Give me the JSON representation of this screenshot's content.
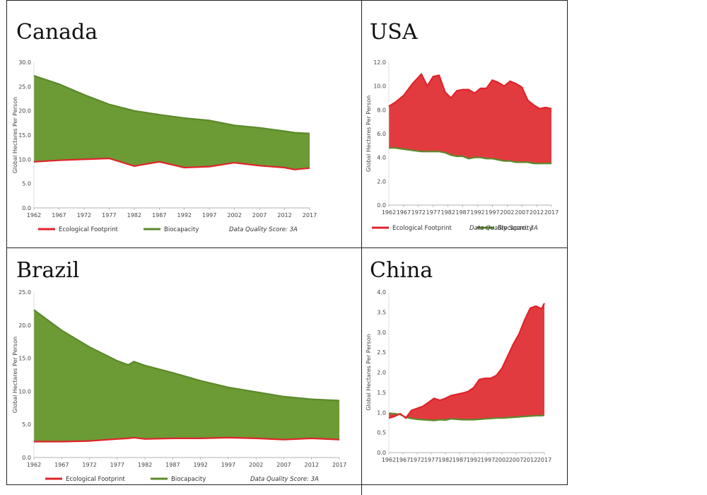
{
  "colors": {
    "footprint": "#e0232a",
    "biocapacity": "#5b8a2b",
    "footprint_fill": "#e23b3f",
    "biocapacity_fill": "#6c9a34"
  },
  "chart_data": [
    {
      "id": "canada",
      "type": "area",
      "title": "Canada",
      "ylabel": "Global Hectares Per Person",
      "ylim": [
        0,
        30
      ],
      "yticks": [
        "0.0",
        "5.0",
        "10.0",
        "15.0",
        "20.0",
        "25.0",
        "30.0"
      ],
      "ytick_values": [
        0,
        5,
        10,
        15,
        20,
        25,
        30
      ],
      "xticks": [
        "1962",
        "1967",
        "1972",
        "1977",
        "1982",
        "1987",
        "1992",
        "1997",
        "2002",
        "2007",
        "2012",
        "2017"
      ],
      "x": [
        1962,
        1967,
        1972,
        1977,
        1982,
        1987,
        1992,
        1997,
        2002,
        2007,
        2012,
        2014,
        2017
      ],
      "series": [
        {
          "name": "Ecological Footprint",
          "key": "footprint",
          "values": [
            9.5,
            9.8,
            10.0,
            10.2,
            8.6,
            9.5,
            8.3,
            8.5,
            9.3,
            8.7,
            8.3,
            7.9,
            8.2
          ]
        },
        {
          "name": "Biocapacity",
          "key": "biocapacity",
          "values": [
            27.2,
            25.5,
            23.3,
            21.3,
            20.0,
            19.2,
            18.5,
            18.0,
            17.0,
            16.5,
            15.8,
            15.5,
            15.3
          ]
        }
      ],
      "legend": {
        "items": [
          "Ecological Footprint",
          "Biocapacity"
        ],
        "note": "Data Quality Score: 3A"
      }
    },
    {
      "id": "usa",
      "type": "area",
      "title": "USA",
      "ylabel": "Global Hectares Per Person",
      "ylim": [
        0,
        12
      ],
      "yticks": [
        "0.0",
        "2.0",
        "4.0",
        "6.0",
        "8.0",
        "10.0",
        "12.0"
      ],
      "ytick_values": [
        0,
        2,
        4,
        6,
        8,
        10,
        12
      ],
      "xticks": [
        "1962",
        "1967",
        "1972",
        "1977",
        "1982",
        "1987",
        "1992",
        "1997",
        "2002",
        "2007",
        "2012",
        "2017"
      ],
      "x": [
        1962,
        1964,
        1967,
        1970,
        1973,
        1975,
        1977,
        1979,
        1981,
        1983,
        1985,
        1987,
        1989,
        1991,
        1993,
        1995,
        1997,
        1999,
        2001,
        2003,
        2005,
        2007,
        2009,
        2011,
        2013,
        2015,
        2017
      ],
      "series": [
        {
          "name": "Ecological Footprint",
          "key": "footprint",
          "values": [
            8.3,
            8.6,
            9.2,
            10.2,
            11.0,
            10.0,
            10.8,
            10.9,
            9.5,
            9.0,
            9.6,
            9.7,
            9.7,
            9.4,
            9.8,
            9.8,
            10.5,
            10.3,
            10.0,
            10.4,
            10.2,
            9.9,
            8.8,
            8.4,
            8.1,
            8.2,
            8.1
          ]
        },
        {
          "name": "Biocapacity",
          "key": "biocapacity",
          "values": [
            4.8,
            4.8,
            4.7,
            4.6,
            4.5,
            4.5,
            4.5,
            4.5,
            4.4,
            4.2,
            4.1,
            4.1,
            3.9,
            4.0,
            4.0,
            3.9,
            3.9,
            3.8,
            3.7,
            3.7,
            3.6,
            3.6,
            3.6,
            3.5,
            3.5,
            3.5,
            3.5
          ]
        }
      ],
      "legend": {
        "items": [
          "Ecological Footprint",
          "Biocapacity"
        ],
        "note": "Data Quality Score: 3A"
      }
    },
    {
      "id": "brazil",
      "type": "area",
      "title": "Brazil",
      "ylabel": "Global Hectares Per Person",
      "ylim": [
        0,
        25
      ],
      "yticks": [
        "0.0",
        "5.0",
        "10.0",
        "15.0",
        "20.0",
        "25.0"
      ],
      "ytick_values": [
        0,
        5,
        10,
        15,
        20,
        25
      ],
      "xticks": [
        "1962",
        "1967",
        "1972",
        "1977",
        "1982",
        "1987",
        "1992",
        "1997",
        "2002",
        "2007",
        "2012",
        "2017"
      ],
      "x": [
        1962,
        1967,
        1972,
        1977,
        1979,
        1980,
        1982,
        1987,
        1992,
        1997,
        2002,
        2007,
        2012,
        2017
      ],
      "series": [
        {
          "name": "Ecological Footprint",
          "key": "footprint",
          "values": [
            2.4,
            2.4,
            2.5,
            2.8,
            2.9,
            3.0,
            2.8,
            2.9,
            2.9,
            3.0,
            2.9,
            2.7,
            2.9,
            2.7
          ]
        },
        {
          "name": "Biocapacity",
          "key": "biocapacity",
          "values": [
            22.3,
            19.2,
            16.7,
            14.6,
            14.0,
            14.5,
            13.9,
            12.8,
            11.6,
            10.6,
            9.9,
            9.2,
            8.8,
            8.6
          ]
        }
      ],
      "legend": {
        "items": [
          "Ecological Footprint",
          "Biocapacity"
        ],
        "note": "Data Quality Score: 3A"
      }
    },
    {
      "id": "china",
      "type": "area",
      "title": "China",
      "ylabel": "Global Hectares Per Person",
      "ylim": [
        0,
        4
      ],
      "yticks": [
        "0.0",
        "0.5",
        "1.0",
        "1.5",
        "2.0",
        "2.5",
        "3.0",
        "3.5",
        "4.0"
      ],
      "ytick_values": [
        0,
        0.5,
        1,
        1.5,
        2,
        2.5,
        3,
        3.5,
        4
      ],
      "xticks": [
        "1962",
        "1967",
        "1972",
        "1977",
        "1982",
        "1987",
        "1992",
        "1997",
        "2002",
        "2007",
        "2012",
        "2017"
      ],
      "x": [
        1962,
        1964,
        1966,
        1968,
        1970,
        1972,
        1974,
        1976,
        1978,
        1980,
        1982,
        1984,
        1986,
        1988,
        1990,
        1992,
        1994,
        1996,
        1998,
        2000,
        2002,
        2004,
        2006,
        2008,
        2010,
        2012,
        2014,
        2016,
        2017
      ],
      "series": [
        {
          "name": "Ecological Footprint",
          "key": "footprint",
          "values": [
            0.86,
            0.9,
            0.97,
            0.86,
            1.05,
            1.1,
            1.15,
            1.25,
            1.35,
            1.3,
            1.35,
            1.42,
            1.45,
            1.48,
            1.52,
            1.62,
            1.82,
            1.85,
            1.85,
            1.92,
            2.1,
            2.4,
            2.7,
            2.95,
            3.3,
            3.6,
            3.65,
            3.58,
            3.72
          ]
        },
        {
          "name": "Biocapacity",
          "key": "biocapacity",
          "values": [
            0.98,
            0.97,
            0.95,
            0.88,
            0.85,
            0.83,
            0.82,
            0.81,
            0.8,
            0.82,
            0.81,
            0.84,
            0.83,
            0.82,
            0.82,
            0.82,
            0.83,
            0.84,
            0.85,
            0.86,
            0.86,
            0.87,
            0.88,
            0.89,
            0.9,
            0.91,
            0.92,
            0.92,
            0.93
          ]
        }
      ],
      "legend": {
        "items": [],
        "note": ""
      }
    }
  ]
}
